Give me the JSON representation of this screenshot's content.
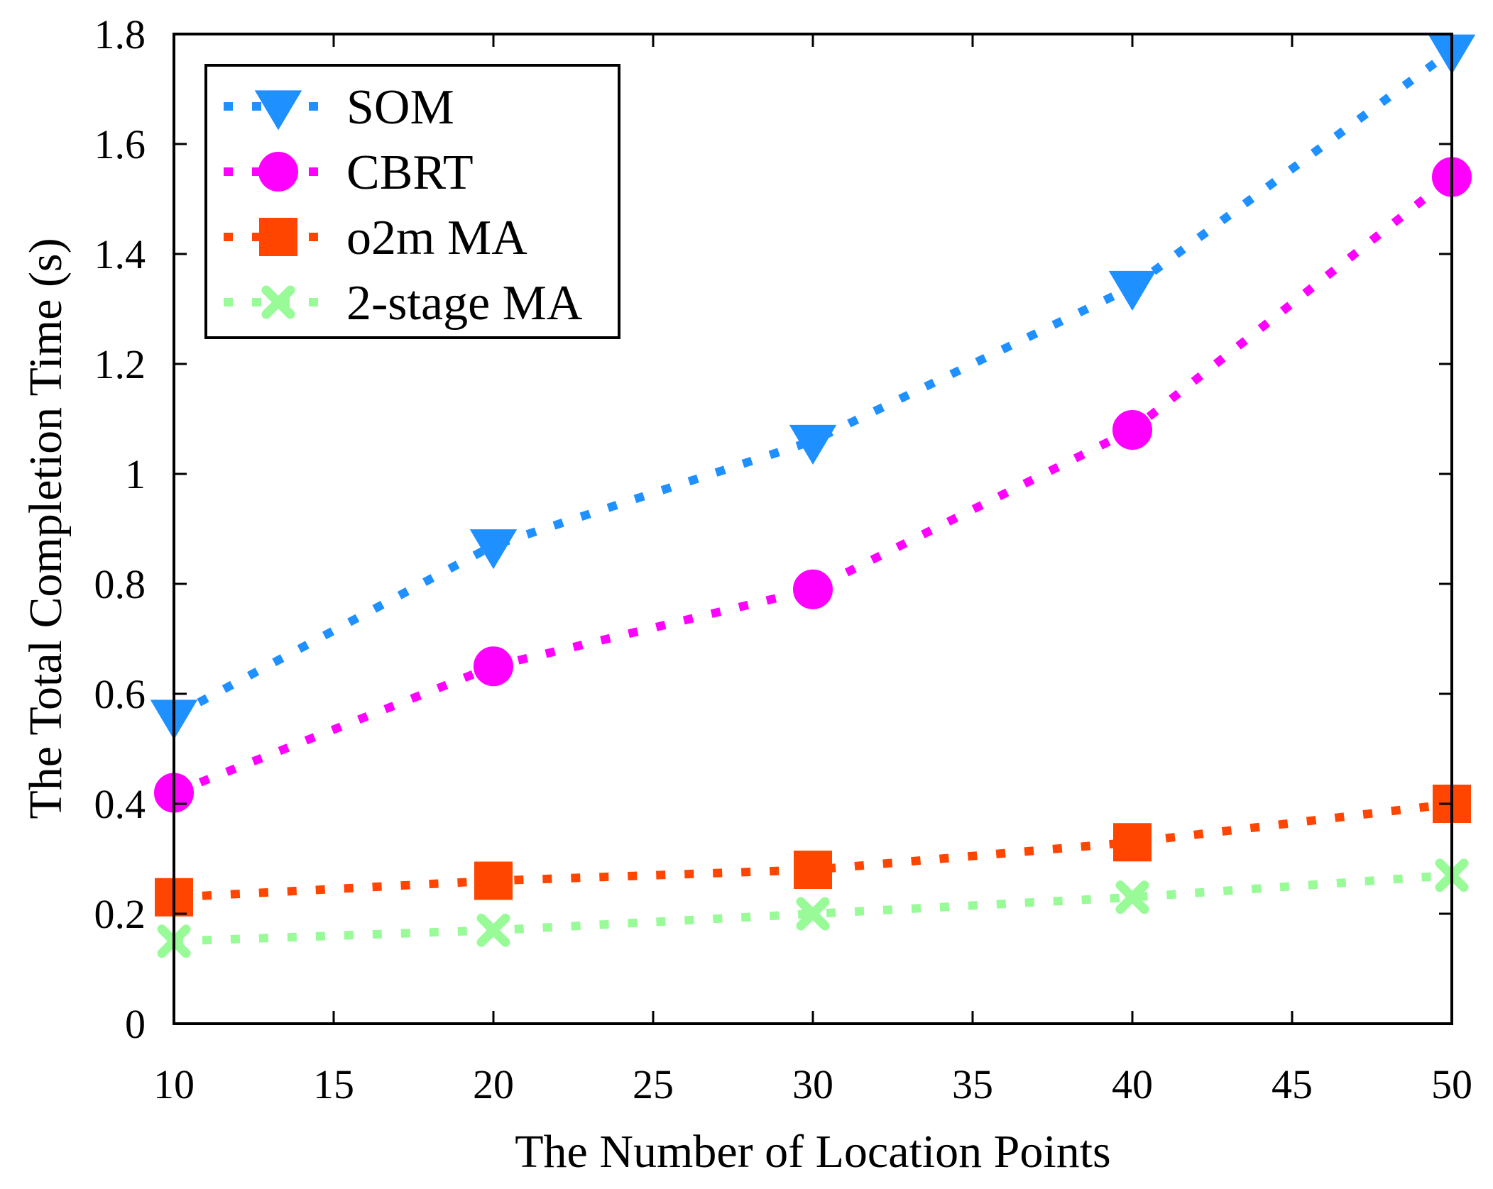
{
  "chart_data": {
    "type": "line",
    "title": "",
    "xlabel": "The Number of Location Points",
    "ylabel": "The Total Completion Time (s)",
    "xlim": [
      10,
      50
    ],
    "ylim": [
      0,
      1.8
    ],
    "x_ticks": [
      10,
      15,
      20,
      25,
      30,
      35,
      40,
      45,
      50
    ],
    "x_tick_labels": [
      "10",
      "15",
      "20",
      "25",
      "30",
      "35",
      "40",
      "45",
      "50"
    ],
    "y_ticks": [
      0,
      0.2,
      0.4,
      0.6,
      0.8,
      1.0,
      1.2,
      1.4,
      1.6,
      1.8
    ],
    "y_tick_labels": [
      "0",
      "0.2",
      "0.4",
      "0.6",
      "0.8",
      "1",
      "1.2",
      "1.4",
      "1.6",
      "1.8"
    ],
    "grid": false,
    "legend_position": "top-left",
    "x": [
      10,
      20,
      30,
      40,
      50
    ],
    "series": [
      {
        "name": "SOM",
        "values": [
          0.56,
          0.87,
          1.06,
          1.34,
          1.77
        ],
        "color": "#1e90ff",
        "marker": "triangle-down",
        "line_style": "dotted"
      },
      {
        "name": "CBRT",
        "values": [
          0.42,
          0.65,
          0.79,
          1.08,
          1.54
        ],
        "color": "#ff00ff",
        "marker": "circle",
        "line_style": "dotted"
      },
      {
        "name": "o2m MA",
        "values": [
          0.23,
          0.26,
          0.28,
          0.33,
          0.4
        ],
        "color": "#ff4500",
        "marker": "square",
        "line_style": "dotted"
      },
      {
        "name": "2-stage MA",
        "values": [
          0.15,
          0.17,
          0.2,
          0.23,
          0.27
        ],
        "color": "#98fb98",
        "marker": "x",
        "line_style": "dotted"
      }
    ]
  }
}
